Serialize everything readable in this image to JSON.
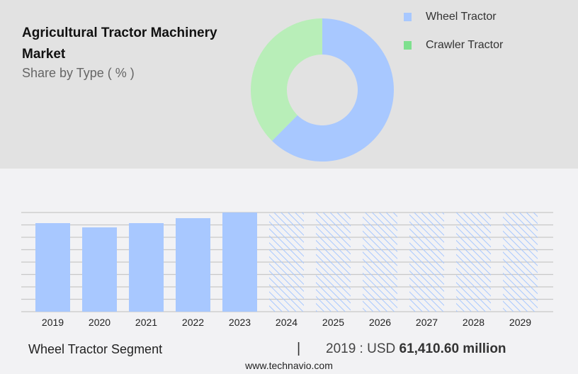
{
  "header": {
    "title": "Agricultural Tractor Machinery Market",
    "subtitle": "Share by Type ( % )"
  },
  "chart_data": [
    {
      "type": "pie",
      "variant": "donut",
      "title": "Agricultural Tractor Machinery Market",
      "subtitle": "Share by Type ( % )",
      "legend_placement": "top-right",
      "slices": [
        {
          "name": "Wheel Tractor",
          "value": 62.4,
          "color": "#a8c8ff"
        },
        {
          "name": "Crawler Tractor",
          "value": 37.6,
          "color": "#b8eeb8"
        }
      ],
      "legend_colors": [
        "#a8c8ff",
        "#7ee08e"
      ]
    },
    {
      "type": "bar",
      "categories": [
        "2019",
        "2020",
        "2021",
        "2022",
        "2023",
        "2024",
        "2025",
        "2026",
        "2027",
        "2028",
        "2029"
      ],
      "values": [
        61410.6,
        58470,
        61410,
        64850,
        68780,
        null,
        null,
        null,
        null,
        null,
        null
      ],
      "forecast_categories": [
        "2024",
        "2025",
        "2026",
        "2027",
        "2028",
        "2029"
      ],
      "ylim": [
        0,
        68780
      ],
      "grid": true,
      "color": "#a8c8ff",
      "forecast_style": "hatched"
    }
  ],
  "footer": {
    "segment": "Wheel Tractor Segment",
    "separator": "|",
    "value_prefix": "2019 : USD ",
    "value": "61,410.60 million",
    "site": "www.technavio.com"
  }
}
